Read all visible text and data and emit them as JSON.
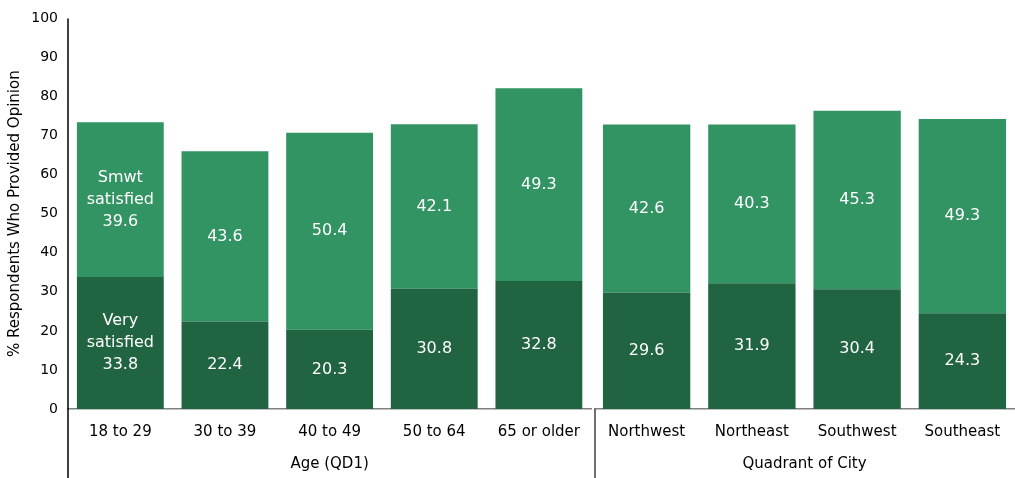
{
  "chart_data": [
    {
      "type": "bar",
      "ylabel": "% Respondents Who Provided Opinion",
      "xlabel": "Age (QD1)",
      "categories": [
        "18 to 29",
        "30 to 39",
        "40 to 49",
        "50 to 64",
        "65 or older"
      ],
      "series": [
        {
          "name": "Very satisfied",
          "color": "#216441",
          "values": [
            33.8,
            22.4,
            20.3,
            30.8,
            32.8
          ]
        },
        {
          "name": "Smwt satisfied",
          "color": "#329363",
          "values": [
            39.6,
            43.6,
            50.4,
            42.1,
            49.3
          ]
        }
      ],
      "stacked": true,
      "ylim": [
        0,
        100
      ],
      "yticks": [
        0,
        10,
        20,
        30,
        40,
        50,
        60,
        70,
        80,
        90,
        100
      ],
      "grid": false,
      "legend": false,
      "data_labels": true
    },
    {
      "type": "bar",
      "xlabel": "Quadrant of City",
      "categories": [
        "Northwest",
        "Northeast",
        "Southwest",
        "Southeast"
      ],
      "series": [
        {
          "color": "#216441",
          "values": [
            29.6,
            31.9,
            30.4,
            24.3
          ]
        },
        {
          "color": "#329363",
          "values": [
            42.6,
            40.3,
            45.3,
            49.3
          ]
        }
      ],
      "stacked": true,
      "ylim": [
        0,
        100
      ],
      "yticks": [
        0,
        10,
        20,
        30,
        40,
        50,
        60,
        70,
        80,
        90,
        100
      ],
      "tick_labels": "x",
      "grid": false,
      "legend": false,
      "data_labels": true
    }
  ]
}
